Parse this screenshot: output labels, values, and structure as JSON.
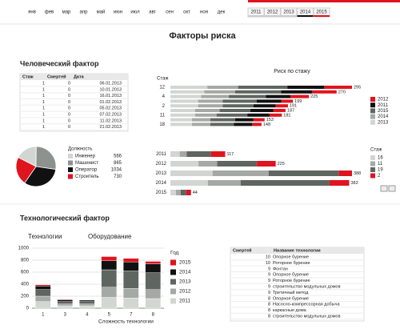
{
  "filters": {
    "months": [
      "янв",
      "фев",
      "мар",
      "апр",
      "май",
      "июн",
      "июл",
      "авг",
      "сен",
      "окт",
      "ноя",
      "дек"
    ],
    "years": [
      "2011",
      "2012",
      "2013",
      "2014",
      "2015"
    ]
  },
  "header": {
    "title": "Факторы риска",
    "human_section": "Человеческий фактор",
    "tech_section": "Технологический фактор"
  },
  "human_table": {
    "columns": [
      "Стаж",
      "Смертей",
      "Дата"
    ],
    "rows": [
      [
        1,
        0,
        "06.01.2013"
      ],
      [
        1,
        0,
        "10.01.2013"
      ],
      [
        1,
        0,
        "16.01.2013"
      ],
      [
        1,
        0,
        "01.02.2013"
      ],
      [
        1,
        0,
        "05.02.2013"
      ],
      [
        1,
        0,
        "07.02.2013"
      ],
      [
        1,
        0,
        "11.02.2013"
      ],
      [
        1,
        0,
        "21.02.2013"
      ]
    ]
  },
  "chart_data": [
    {
      "type": "stacked-barh",
      "title": "Риск по стажу",
      "y_label": "Стаж",
      "categories": [
        "12",
        null,
        "4",
        null,
        "2",
        null,
        "11",
        null,
        "18"
      ],
      "series": [
        {
          "name": "2013",
          "color": "#d2d6d2",
          "values": [
            60,
            55,
            50,
            45,
            45,
            40,
            40,
            35,
            35
          ]
        },
        {
          "name": "2014",
          "color": "#a4a9a5",
          "values": [
            50,
            50,
            45,
            40,
            40,
            40,
            35,
            30,
            30
          ]
        },
        {
          "name": "2015",
          "color": "#5f6661",
          "values": [
            80,
            75,
            60,
            55,
            50,
            50,
            50,
            40,
            38
          ]
        },
        {
          "name": "2011",
          "color": "#111111",
          "values": [
            60,
            50,
            40,
            40,
            36,
            37,
            36,
            30,
            30
          ]
        },
        {
          "name": "2012",
          "color": "#e0141e",
          "values": [
            45,
            40,
            30,
            19,
            20,
            20,
            20,
            18,
            15
          ]
        }
      ],
      "totals": [
        295,
        270,
        225,
        199,
        191,
        187,
        181,
        153,
        148
      ]
    },
    {
      "type": "pie",
      "legend_title": "Должность",
      "labels": [
        "Инженер",
        "Машинист",
        "Оператор",
        "Строитель"
      ],
      "values": [
        566,
        865,
        1034,
        730
      ],
      "colors": [
        "#d2d6d2",
        "#8c928e",
        "#111111",
        "#e0141e"
      ]
    },
    {
      "type": "stacked-barh",
      "legend_title": "Стаж",
      "categories": [
        "2011",
        "2012",
        "2013",
        "2014",
        "2015"
      ],
      "series": [
        {
          "name": "16",
          "color": "#d2d6d2",
          "values": [
            20,
            60,
            90,
            80,
            12
          ]
        },
        {
          "name": "11",
          "color": "#a4a9a5",
          "values": [
            15,
            40,
            120,
            70,
            10
          ]
        },
        {
          "name": "19",
          "color": "#5f6661",
          "values": [
            52,
            85,
            150,
            190,
            12
          ]
        },
        {
          "name": "2",
          "color": "#e0141e",
          "values": [
            30,
            40,
            28,
            42,
            10
          ]
        }
      ],
      "totals": [
        117,
        225,
        388,
        382,
        44
      ]
    },
    {
      "type": "stacked-bar",
      "annotations": [
        "Технологии",
        "Оборудование"
      ],
      "legend_title": "Год",
      "x_label": "Сложность технологии",
      "categories": [
        "1",
        "3",
        "4",
        "5",
        "7",
        "8"
      ],
      "ylim": [
        0,
        1000
      ],
      "yticks": [
        0,
        200,
        400,
        600,
        800,
        1000
      ],
      "grid": true,
      "series": [
        {
          "name": "2011",
          "color": "#d2d6d2",
          "values": [
            110,
            40,
            40,
            180,
            170,
            160
          ]
        },
        {
          "name": "2012",
          "color": "#a4a9a5",
          "values": [
            90,
            30,
            30,
            170,
            160,
            150
          ]
        },
        {
          "name": "2013",
          "color": "#5f6661",
          "values": [
            110,
            40,
            40,
            290,
            290,
            280
          ]
        },
        {
          "name": "2014",
          "color": "#111111",
          "values": [
            60,
            30,
            25,
            150,
            150,
            150
          ]
        },
        {
          "name": "2015",
          "color": "#e0141e",
          "values": [
            20,
            10,
            5,
            70,
            60,
            40
          ]
        }
      ]
    }
  ],
  "tech_table": {
    "columns": [
      "Смертей",
      "Название технологии"
    ],
    "rows": [
      [
        10,
        "Опорное бурение"
      ],
      [
        10,
        "Роторное бурение"
      ],
      [
        9,
        "Фонтан"
      ],
      [
        9,
        "Опорное бурение"
      ],
      [
        9,
        "Роторное бурение"
      ],
      [
        9,
        "строительство модульных домов"
      ],
      [
        9,
        "Третичный метод"
      ],
      [
        8,
        "Опорное бурение"
      ],
      [
        8,
        "Насосно-компрессорная добыча"
      ],
      [
        8,
        "каркасные дома"
      ],
      [
        8,
        "строительство модульных домов"
      ]
    ]
  }
}
